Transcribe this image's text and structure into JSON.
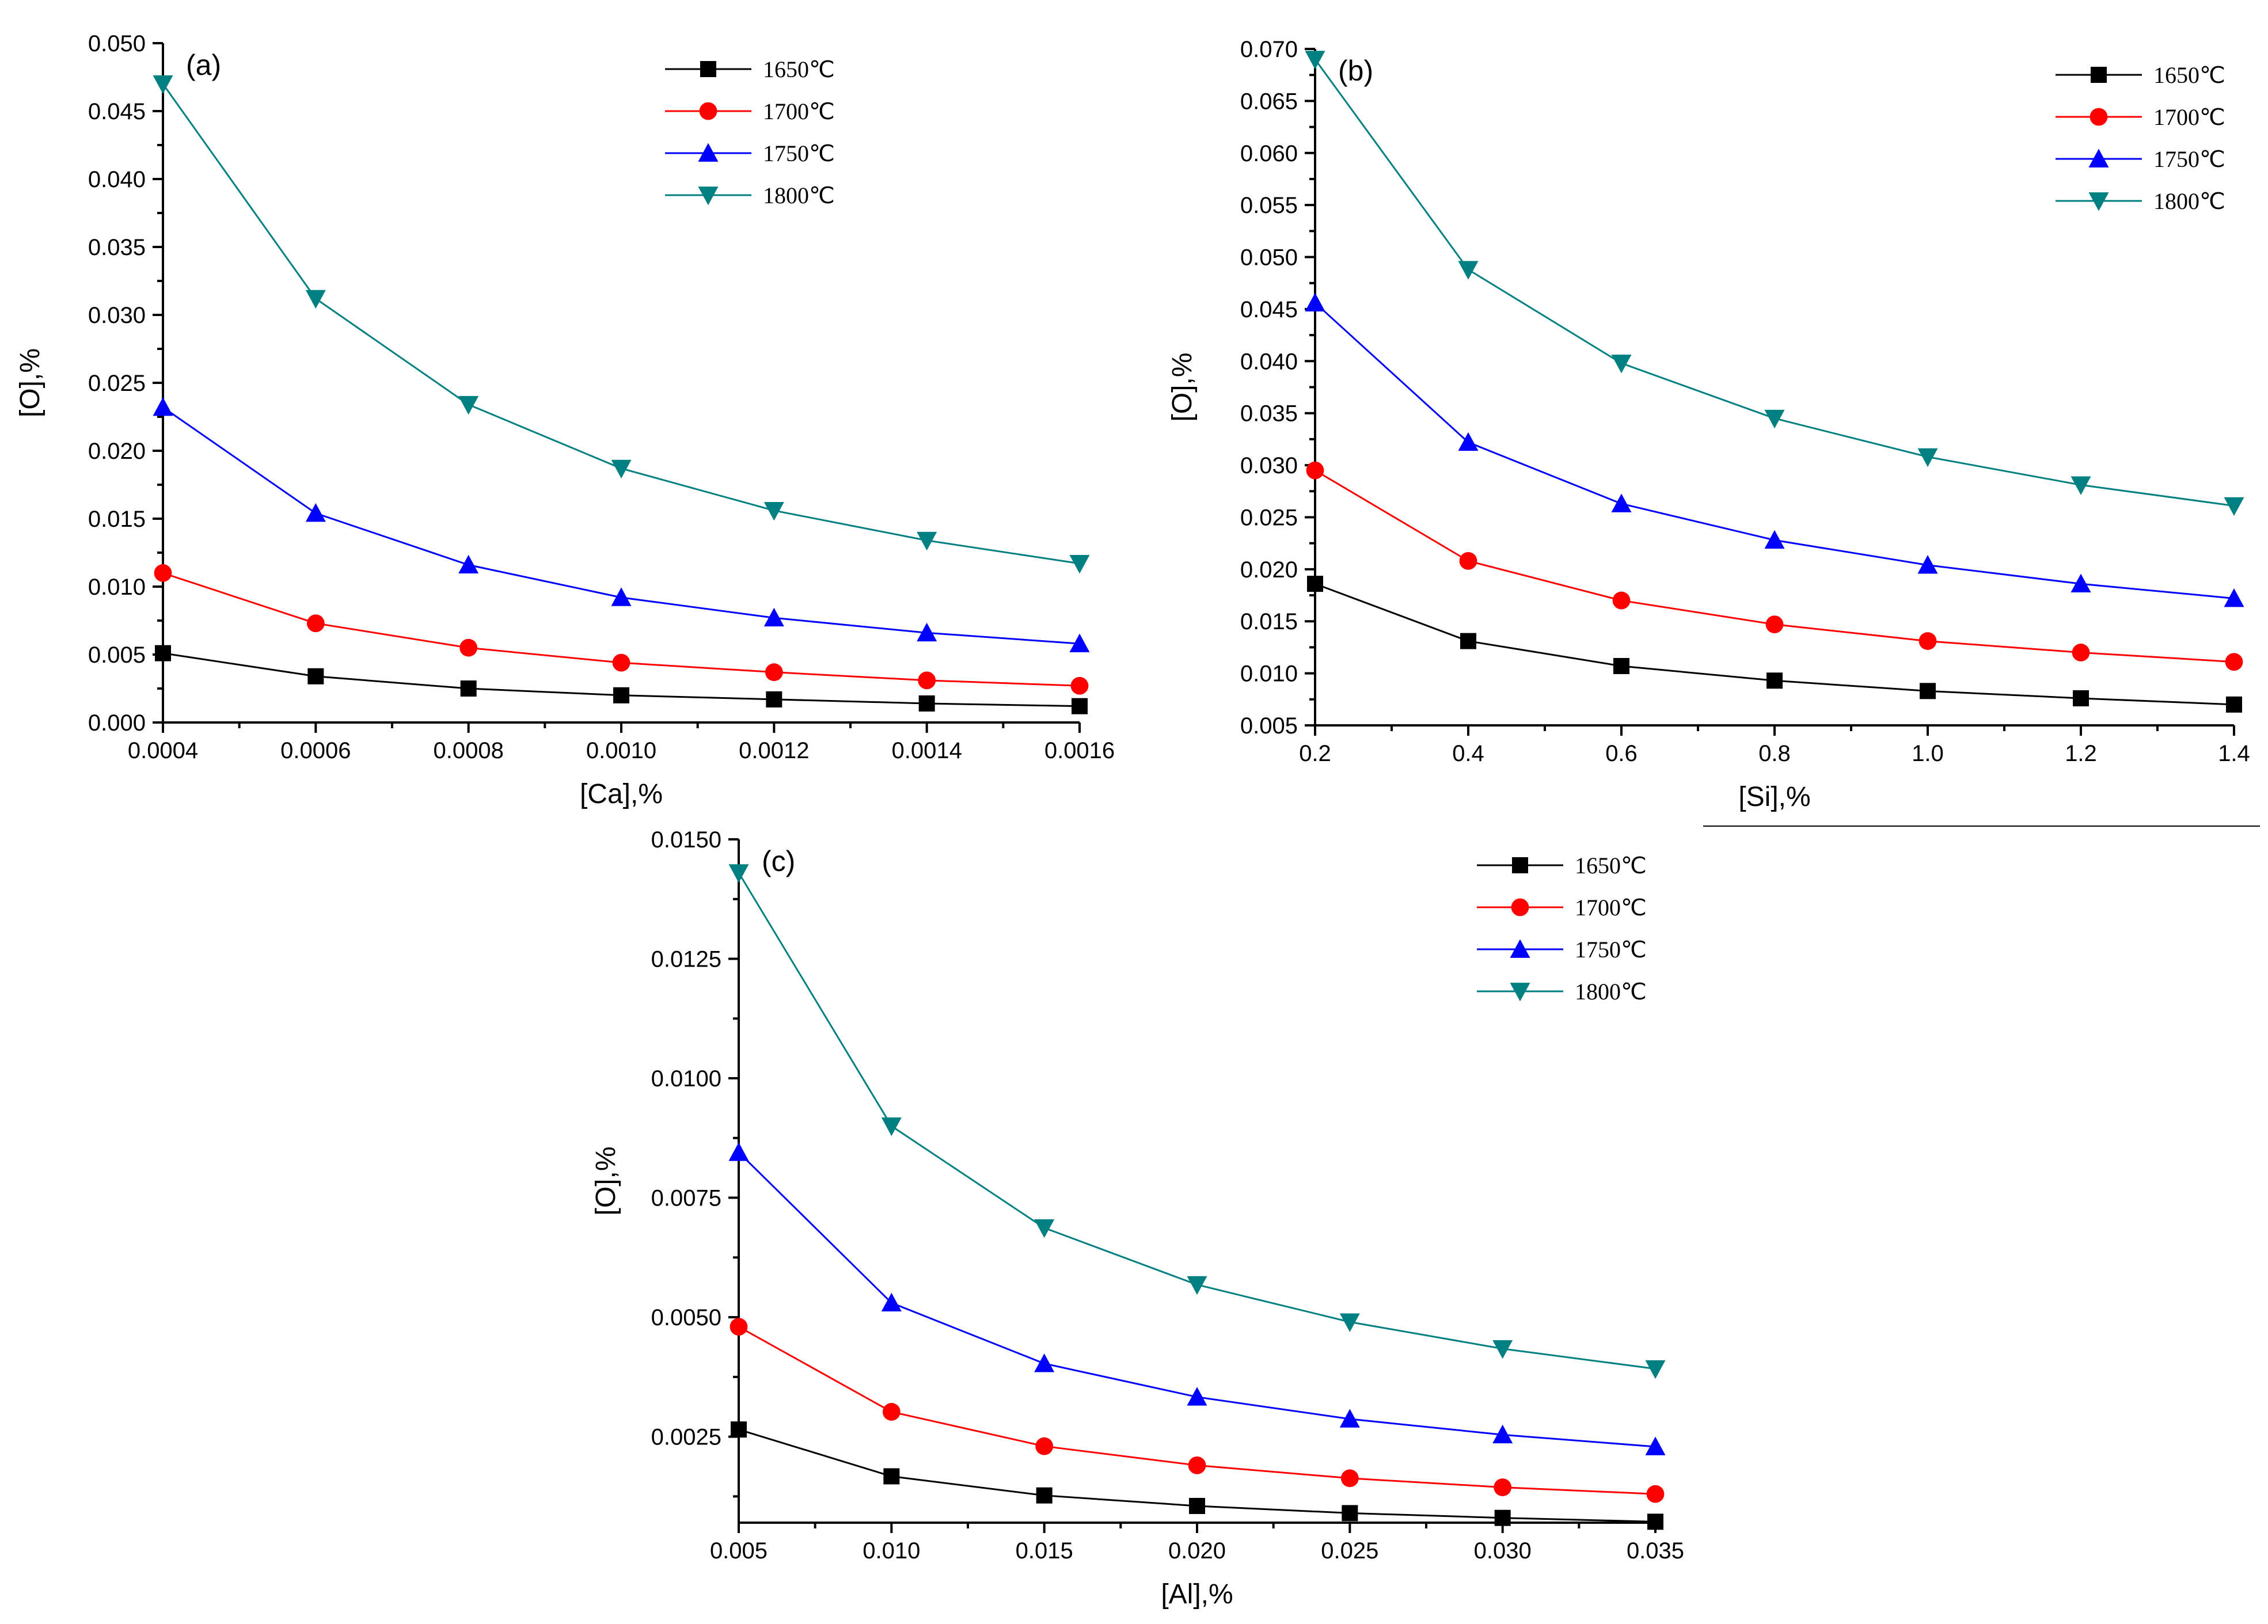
{
  "chart_data": [
    {
      "type": "line",
      "panel_label": "(a)",
      "xlabel": "[Ca],%",
      "ylabel": "[O],%",
      "xlim": [
        0.0004,
        0.0016
      ],
      "ylim": [
        0.0,
        0.05
      ],
      "x_ticks": [
        "0.0004",
        "0.0006",
        "0.0008",
        "0.0010",
        "0.0012",
        "0.0014",
        "0.0016"
      ],
      "y_ticks": [
        "0.000",
        "0.005",
        "0.010",
        "0.015",
        "0.020",
        "0.025",
        "0.030",
        "0.035",
        "0.040",
        "0.045",
        "0.050"
      ],
      "x": [
        0.0004,
        0.0006,
        0.0008,
        0.001,
        0.0012,
        0.0014,
        0.0016
      ],
      "legend_position": "top-right",
      "series": [
        {
          "name": "1650℃",
          "color": "#000000",
          "marker": "square",
          "values": [
            0.0051,
            0.0034,
            0.0025,
            0.002,
            0.0017,
            0.0014,
            0.0012
          ]
        },
        {
          "name": "1700℃",
          "color": "#ff0000",
          "marker": "circle",
          "values": [
            0.011,
            0.0073,
            0.0055,
            0.0044,
            0.0037,
            0.0031,
            0.0027
          ]
        },
        {
          "name": "1750℃",
          "color": "#0000ff",
          "marker": "triangle-up",
          "values": [
            0.0232,
            0.0154,
            0.0116,
            0.0092,
            0.0077,
            0.0066,
            0.0058
          ]
        },
        {
          "name": "1800℃",
          "color": "#008080",
          "marker": "triangle-down",
          "values": [
            0.047,
            0.0312,
            0.0234,
            0.0187,
            0.0156,
            0.0134,
            0.0117
          ]
        }
      ]
    },
    {
      "type": "line",
      "panel_label": "(b)",
      "xlabel": "[Si],%",
      "ylabel": "[O],%",
      "xlim": [
        0.2,
        1.4
      ],
      "ylim": [
        0.005,
        0.07
      ],
      "x_ticks": [
        "0.2",
        "0.4",
        "0.6",
        "0.8",
        "1.0",
        "1.2",
        "1.4"
      ],
      "y_ticks": [
        "0.005",
        "0.010",
        "0.015",
        "0.020",
        "0.025",
        "0.030",
        "0.035",
        "0.040",
        "0.045",
        "0.050",
        "0.055",
        "0.060",
        "0.065",
        "0.070"
      ],
      "x": [
        0.2,
        0.4,
        0.6,
        0.8,
        1.0,
        1.2,
        1.4
      ],
      "legend_position": "top-right",
      "series": [
        {
          "name": "1650℃",
          "color": "#000000",
          "marker": "square",
          "values": [
            0.0186,
            0.0131,
            0.0107,
            0.0093,
            0.0083,
            0.0076,
            0.007
          ]
        },
        {
          "name": "1700℃",
          "color": "#ff0000",
          "marker": "circle",
          "values": [
            0.0295,
            0.0208,
            0.017,
            0.0147,
            0.0131,
            0.012,
            0.0111
          ]
        },
        {
          "name": "1750℃",
          "color": "#0000ff",
          "marker": "triangle-up",
          "values": [
            0.0456,
            0.0322,
            0.0263,
            0.0228,
            0.0204,
            0.0186,
            0.0172
          ]
        },
        {
          "name": "1800℃",
          "color": "#008080",
          "marker": "triangle-down",
          "values": [
            0.069,
            0.0488,
            0.0398,
            0.0345,
            0.0308,
            0.0281,
            0.0261
          ]
        }
      ]
    },
    {
      "type": "line",
      "panel_label": "(c)",
      "xlabel": "[Al],%",
      "ylabel": "[O],%",
      "xlim": [
        0.005,
        0.035
      ],
      "ylim": [
        0.0007,
        0.015
      ],
      "x_ticks": [
        "0.005",
        "0.010",
        "0.015",
        "0.020",
        "0.025",
        "0.030",
        "0.035"
      ],
      "y_ticks": [
        "0.0025",
        "0.0050",
        "0.0075",
        "0.0100",
        "0.0125",
        "0.0150"
      ],
      "x": [
        0.005,
        0.01,
        0.015,
        0.02,
        0.025,
        0.03,
        0.035
      ],
      "legend_position": "top-right",
      "series": [
        {
          "name": "1650℃",
          "color": "#000000",
          "marker": "square",
          "values": [
            0.00265,
            0.00167,
            0.00127,
            0.00105,
            0.0009,
            0.0008,
            0.00072
          ]
        },
        {
          "name": "1700℃",
          "color": "#ff0000",
          "marker": "circle",
          "values": [
            0.0048,
            0.00302,
            0.0023,
            0.0019,
            0.00163,
            0.00144,
            0.0013
          ]
        },
        {
          "name": "1750℃",
          "color": "#0000ff",
          "marker": "triangle-up",
          "values": [
            0.00845,
            0.0053,
            0.00403,
            0.00333,
            0.00287,
            0.00254,
            0.00229
          ]
        },
        {
          "name": "1800℃",
          "color": "#008080",
          "marker": "triangle-down",
          "values": [
            0.0143,
            0.009,
            0.00687,
            0.00568,
            0.0049,
            0.00434,
            0.00392
          ]
        }
      ]
    }
  ]
}
